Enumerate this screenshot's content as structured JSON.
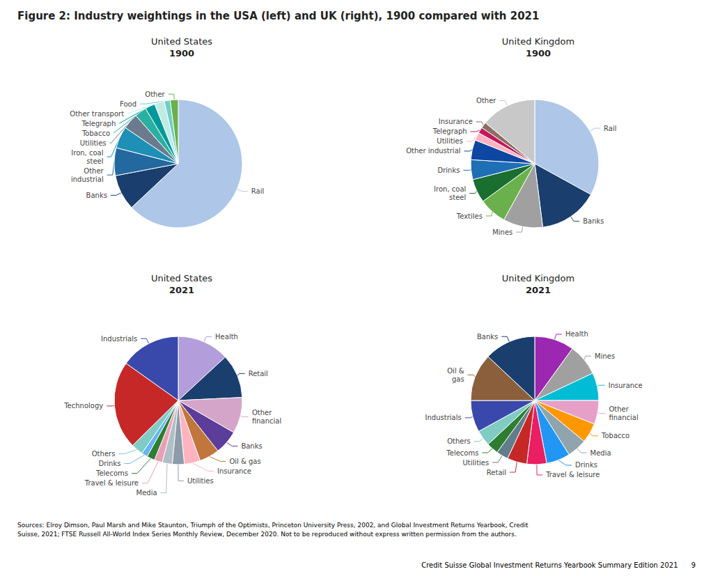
{
  "title": "Figure 2: Industry weightings in the USA (left) and UK (right), 1900 compared with 2021",
  "annotations": [
    "Sources: Elroy Dimson, Paul Marsh and Mike Staunton, Triumph of the Optimists, Princeton University Press, 2002, and Global Investment Returns Yearbook, Credit\nSuisse, 2021; FTSE Russell All-World Index Series Monthly Review, December 2020. Not to be reproduced without express written permission from the authors.",
    "Credit Suisse Global Investment Returns Yearbook Summary Edition 2021      9"
  ],
  "chart_data": [
    {
      "type": "pie",
      "title": "United States",
      "subtitle": "1900",
      "categories": [
        "Rail",
        "Banks",
        "Other\nindustrial",
        "Iron, coal\nsteel",
        "Utilities",
        "Tobacco",
        "Telegraph",
        "Other transport",
        "Food",
        "Other"
      ],
      "values": [
        63,
        9,
        7,
        5.5,
        4,
        3,
        2.5,
        2.5,
        1.5,
        2
      ],
      "colors": [
        "#aec6e8",
        "#1a3f6e",
        "#2369a0",
        "#1e8fb5",
        "#6b7b8d",
        "#2ab0a0",
        "#009999",
        "#c0ebe5",
        "#6ecfc5",
        "#6ab04c"
      ]
    },
    {
      "type": "pie",
      "title": "United Kingdom",
      "subtitle": "1900",
      "categories": [
        "Rail",
        "Banks",
        "Mines",
        "Textiles",
        "Iron, coal\nsteel",
        "Drinks",
        "Other industrial",
        "Utilities",
        "Telegraph",
        "Insurance",
        "Other"
      ],
      "values": [
        33,
        15,
        10,
        7,
        6,
        5,
        5,
        2,
        1.5,
        1.5,
        14
      ],
      "colors": [
        "#aec6e8",
        "#1a3f6e",
        "#a0a0a0",
        "#6ab04c",
        "#1a6e30",
        "#1e6fb5",
        "#0d47a1",
        "#ffb3c1",
        "#c2185b",
        "#8d6e63",
        "#c8c8c8"
      ]
    },
    {
      "type": "pie",
      "title": "United States",
      "subtitle": "2021",
      "categories": [
        "Health",
        "Retail",
        "Other\nfinancial",
        "Banks",
        "Oil & gas",
        "Insurance",
        "Utilities",
        "Media",
        "Travel & leisure",
        "Telecoms",
        "Drinks",
        "Others",
        "Technology",
        "Industrials"
      ],
      "values": [
        13,
        11,
        9,
        6,
        5,
        4,
        3,
        2.5,
        2,
        2,
        1.5,
        3,
        22,
        15
      ],
      "colors": [
        "#b39ddb",
        "#1a3f6e",
        "#d4a5c9",
        "#5c3d99",
        "#c0763c",
        "#ffb3c1",
        "#8d9baa",
        "#b0bec5",
        "#e8a0b4",
        "#2e7d32",
        "#64b5f6",
        "#80cbc4",
        "#c62828",
        "#3949ab"
      ]
    },
    {
      "type": "pie",
      "title": "United Kingdom",
      "subtitle": "2021",
      "categories": [
        "Health",
        "Mines",
        "Insurance",
        "Other\nfinancial",
        "Tobacco",
        "Media",
        "Drinks",
        "Travel & leisure",
        "Retail",
        "Utilities",
        "Telecoms",
        "Others",
        "Industrials",
        "Oil &\ngas",
        "Banks"
      ],
      "values": [
        10,
        8,
        7,
        6,
        5,
        5,
        6,
        5,
        5,
        3,
        3,
        4,
        8,
        12,
        13
      ],
      "colors": [
        "#9c27b0",
        "#a0a0a0",
        "#00bcd4",
        "#e6a0c8",
        "#ff9800",
        "#90a4ae",
        "#2196f3",
        "#e91e63",
        "#c62828",
        "#607d8b",
        "#2e7d32",
        "#80cbc4",
        "#3949ab",
        "#8b5e3c",
        "#1a3f6e"
      ]
    }
  ]
}
